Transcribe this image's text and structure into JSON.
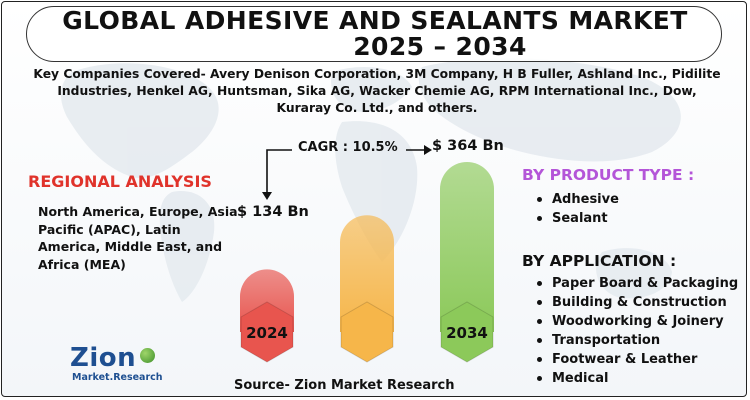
{
  "title_line1": "GLOBAL ADHESIVE AND SEALANTS MARKET",
  "title_line2": "2025 – 2034",
  "companies": "Key Companies Covered- Avery Denison Corporation, 3M Company, H B Fuller, Ashland Inc., Pidilite Industries, Henkel AG, Huntsman, Sika AG, Wacker Chemie AG, RPM International Inc., Dow, Kuraray Co. Ltd., and others.",
  "regional": {
    "title": "REGIONAL ANALYSIS",
    "text": "North America, Europe, Asia Pacific (APAC), Latin America, Middle East, and Africa (MEA)"
  },
  "product_type": {
    "title": "BY PRODUCT TYPE :",
    "items": [
      "Adhesive",
      "Sealant"
    ]
  },
  "application": {
    "title": "BY APPLICATION :",
    "items": [
      "Paper Board & Packaging",
      "Building & Construction",
      "Woodworking & Joinery",
      "Transportation",
      "Footwear & Leather",
      "Medical"
    ]
  },
  "source": "Source- Zion Market Research",
  "logo": {
    "main": "Zion",
    "sub": "Market.Research"
  },
  "colors": {
    "bar_2024": "#e8554e",
    "bar_mid": "#f6b64a",
    "bar_2034": "#8cc95a",
    "accent_red": "#e0332b",
    "accent_purple": "#b455d8"
  },
  "chart_data": {
    "type": "bar",
    "categories": [
      "2024",
      "",
      "2034"
    ],
    "values": [
      134,
      250,
      364
    ],
    "value_labels": [
      "$ 134 Bn",
      "",
      "$ 364 Bn"
    ],
    "unit": "USD Bn",
    "cagr_label": "CAGR : 10.5%",
    "ylim": [
      0,
      364
    ]
  }
}
